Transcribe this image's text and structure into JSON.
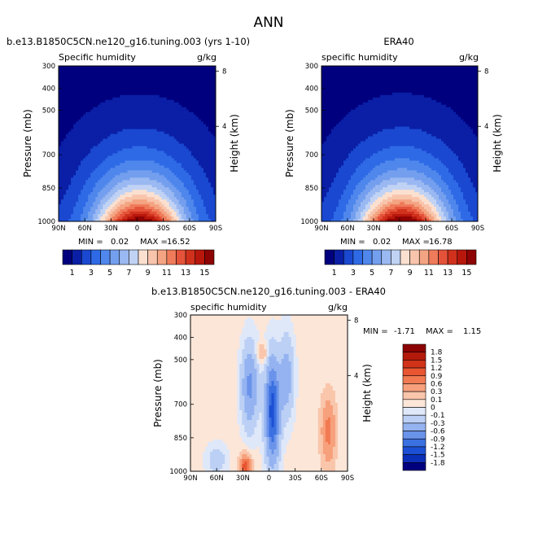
{
  "figure": {
    "title": "ANN",
    "background_color": "#ffffff",
    "colors": {
      "fg_levels": [
        "#00007f",
        "#0a1fa6",
        "#1a48d0",
        "#2f6ae6",
        "#4f87ec",
        "#749fee",
        "#9ab8f1",
        "#c1d3f4",
        "#fbe0d0",
        "#f8c4ab",
        "#f4a482",
        "#ef7b5a",
        "#e4523a",
        "#d0311d",
        "#b8170c",
        "#8e0303"
      ],
      "diff_levels": [
        "#00007f",
        "#0a2fb8",
        "#1c50d4",
        "#3a70e0",
        "#6a93ea",
        "#94b3f0",
        "#bcd0f5",
        "#dfe8f9",
        "#fce6d8",
        "#f9c6ab",
        "#f7a07c",
        "#f27a52",
        "#e85530",
        "#d13218",
        "#b31a0b",
        "#8c0303"
      ]
    }
  },
  "chart_data": [
    {
      "type": "contour",
      "id": "model",
      "title": "b.e13.B1850C5CN.ne120_g16.tuning.003 (yrs 1-10)",
      "left_label": "Specific humidity",
      "right_label": "g/kg",
      "ylabel": "Pressure (mb)",
      "y2label": "Height (km)",
      "x_ticks": [
        "90N",
        "60N",
        "30N",
        "0",
        "30S",
        "60S",
        "90S"
      ],
      "x_values": [
        90,
        60,
        30,
        0,
        -30,
        -60,
        -90
      ],
      "y_ticks": [
        300,
        400,
        500,
        700,
        850,
        1000
      ],
      "y2_ticks": [
        8,
        4
      ],
      "min_label": "MIN =",
      "min": "0.02",
      "max_label": "MAX =",
      "max": "16.52",
      "field": {
        "peak_lat": -3,
        "peak_value": 16.4,
        "scale_height_mb": 190
      },
      "colorbar": {
        "labels": [
          "1",
          "3",
          "5",
          "7",
          "9",
          "11",
          "13",
          "15"
        ],
        "levels": [
          1,
          2,
          3,
          4,
          5,
          6,
          7,
          8,
          9,
          10,
          11,
          12,
          13,
          14,
          15
        ]
      }
    },
    {
      "type": "contour",
      "id": "obs",
      "title": "ERA40",
      "left_label": "specific humidity",
      "right_label": "g/kg",
      "ylabel": "Pressure (mb)",
      "y2label": "Height (km)",
      "x_ticks": [
        "90N",
        "60N",
        "30N",
        "0",
        "30S",
        "60S",
        "90S"
      ],
      "x_values": [
        90,
        60,
        30,
        0,
        -30,
        -60,
        -90
      ],
      "y_ticks": [
        300,
        400,
        500,
        700,
        850,
        1000
      ],
      "y2_ticks": [
        8,
        4
      ],
      "min_label": "MIN =",
      "min": "0.02",
      "max_label": "MAX =",
      "max": "16.78",
      "field": {
        "peak_lat": -3,
        "peak_value": 16.7,
        "scale_height_mb": 190
      },
      "colorbar": {
        "labels": [
          "1",
          "3",
          "5",
          "7",
          "9",
          "11",
          "13",
          "15"
        ],
        "levels": [
          1,
          2,
          3,
          4,
          5,
          6,
          7,
          8,
          9,
          10,
          11,
          12,
          13,
          14,
          15
        ]
      }
    },
    {
      "type": "contour",
      "id": "diff",
      "title": "b.e13.B1850C5CN.ne120_g16.tuning.003 - ERA40",
      "left_label": "specific humidity",
      "right_label": "g/kg",
      "ylabel": "Pressure (mb)",
      "y2label": "Height (km)",
      "x_ticks": [
        "90N",
        "60N",
        "30N",
        "0",
        "30S",
        "60S",
        "90S"
      ],
      "x_values": [
        90,
        60,
        30,
        0,
        -30,
        -60,
        -90
      ],
      "y_ticks": [
        300,
        400,
        500,
        700,
        850,
        1000
      ],
      "y2_ticks": [
        8,
        4
      ],
      "min_label": "MIN =",
      "min": "-1.71",
      "max_label": "MAX =",
      "max": "1.15",
      "colorbar": {
        "labels": [
          "1.8",
          "1.5",
          "1.2",
          "0.9",
          "0.6",
          "0.3",
          "0.1",
          "0",
          "-0.1",
          "-0.3",
          "-0.6",
          "-0.9",
          "-1.2",
          "-1.5",
          "-1.8"
        ],
        "levels": [
          -1.8,
          -1.5,
          -1.2,
          -0.9,
          -0.6,
          -0.3,
          -0.1,
          0,
          0.1,
          0.3,
          0.6,
          0.9,
          1.2,
          1.5,
          1.8
        ]
      }
    }
  ]
}
